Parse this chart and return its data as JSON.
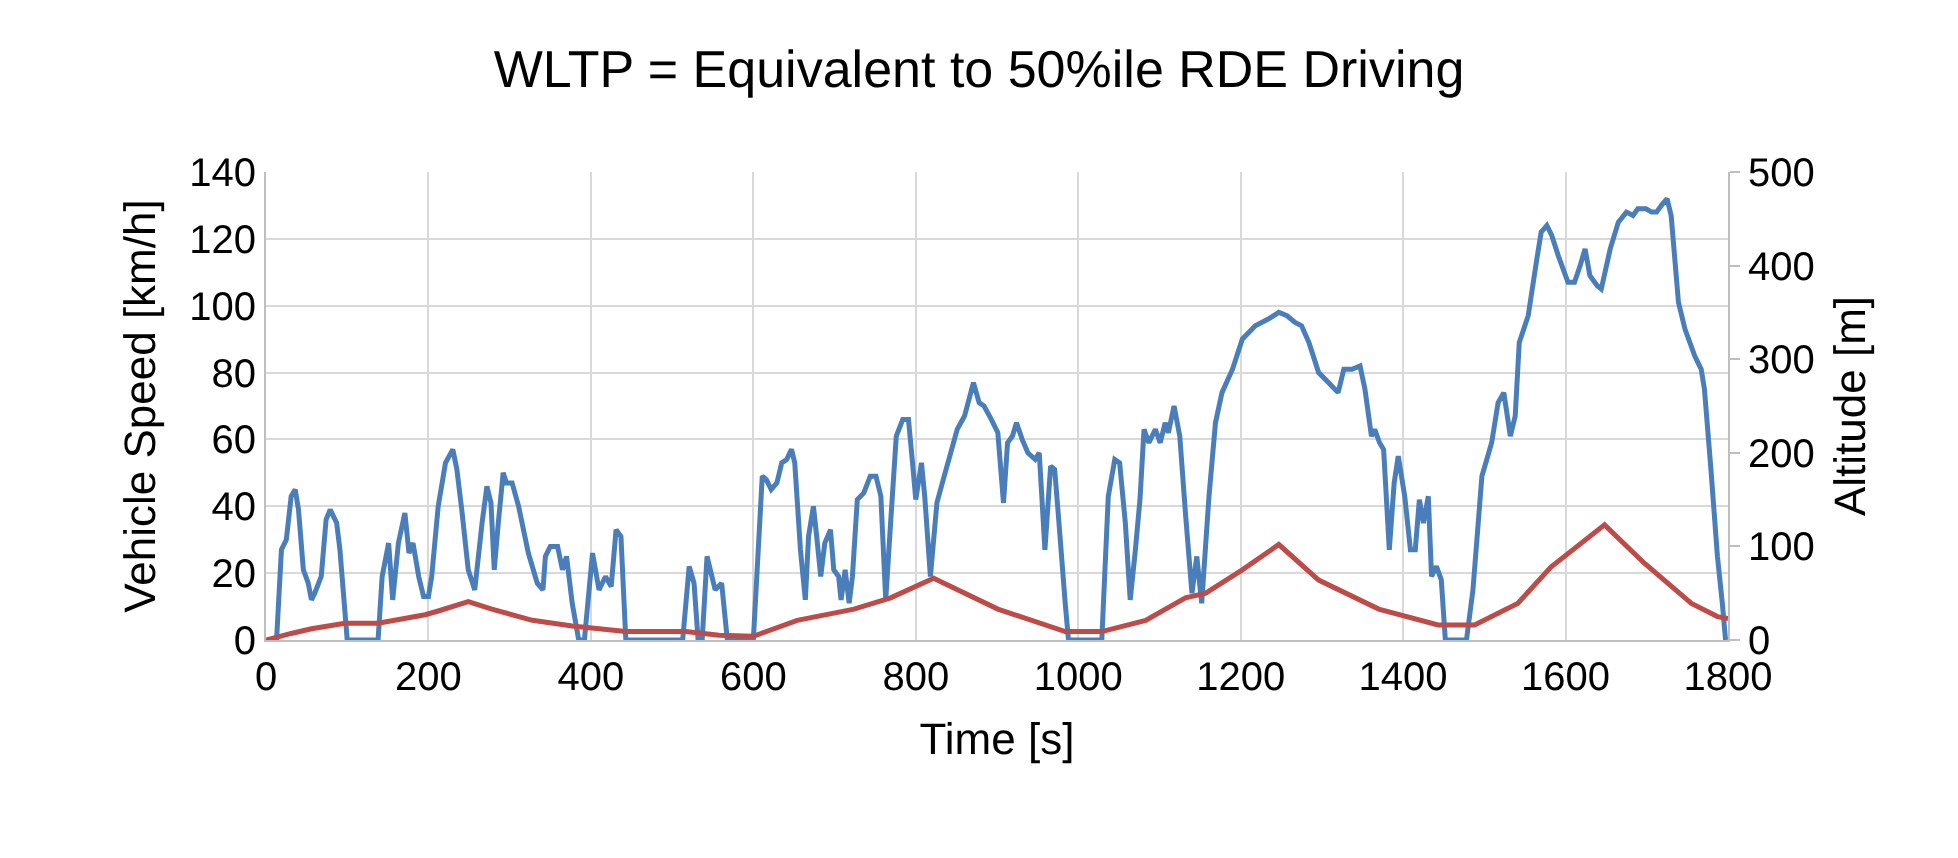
{
  "chart_data": {
    "type": "line",
    "title": "WLTP = Equivalent to 50%ile RDE Driving",
    "xlabel": "Time [s]",
    "ylabel": "Vehicle Speed [km/h]",
    "y2label": "Altitude [m]",
    "xlim": [
      0,
      1800
    ],
    "xticks": [
      0,
      200,
      400,
      600,
      800,
      1000,
      1200,
      1400,
      1600,
      1800
    ],
    "ylim": [
      0,
      140
    ],
    "yticks": [
      0,
      20,
      40,
      60,
      80,
      100,
      120,
      140
    ],
    "y2lim": [
      0,
      500
    ],
    "y2ticks": [
      0,
      100,
      200,
      300,
      400,
      500
    ],
    "grid": true,
    "marker": "none",
    "line_style": "solid",
    "series": [
      {
        "color": "#4a7ebb",
        "x": [
          13,
          19,
          25,
          31,
          36,
          40,
          46,
          52,
          56,
          60,
          68,
          74,
          79,
          87,
          91,
          100,
          138,
          143,
          151,
          156,
          163,
          171,
          176,
          181,
          188,
          194,
          200,
          204,
          212,
          221,
          230,
          235,
          241,
          249,
          257,
          266,
          272,
          277,
          281,
          286,
          292,
          296,
          303,
          311,
          323,
          334,
          341,
          344,
          350,
          359,
          365,
          370,
          377,
          385,
          392,
          402,
          410,
          418,
          425,
          431,
          437,
          443,
          513,
          521,
          527,
          532,
          537,
          543,
          553,
          561,
          568,
          600,
          611,
          616,
          622,
          629,
          635,
          641,
          647,
          651,
          658,
          664,
          668,
          674,
          678,
          683,
          688,
          695,
          699,
          705,
          708,
          713,
          718,
          722,
          728,
          736,
          744,
          751,
          757,
          763,
          769,
          776,
          784,
          791,
          796,
          800,
          807,
          811,
          818,
          826,
          835,
          843,
          851,
          860,
          871,
          878,
          884,
          893,
          901,
          908,
          913,
          919,
          924,
          931,
          938,
          947,
          952,
          959,
          966,
          971,
          975,
          984,
          988,
          1029,
          1037,
          1045,
          1051,
          1058,
          1064,
          1070,
          1076,
          1081,
          1087,
          1095,
          1101,
          1107,
          1111,
          1118,
          1125,
          1132,
          1140,
          1146,
          1152,
          1161,
          1169,
          1177,
          1190,
          1202,
          1218,
          1234,
          1247,
          1257,
          1267,
          1275,
          1284,
          1296,
          1308,
          1320,
          1327,
          1337,
          1347,
          1353,
          1361,
          1365,
          1371,
          1376,
          1383,
          1389,
          1394,
          1402,
          1409,
          1415,
          1420,
          1425,
          1431,
          1435,
          1441,
          1447,
          1452,
          1478,
          1486,
          1497,
          1509,
          1517,
          1524,
          1532,
          1538,
          1543,
          1554,
          1564,
          1570,
          1577,
          1583,
          1591,
          1603,
          1611,
          1618,
          1624,
          1630,
          1639,
          1644,
          1655,
          1665,
          1675,
          1683,
          1689,
          1699,
          1706,
          1712,
          1718,
          1725,
          1730,
          1739,
          1747,
          1759,
          1767,
          1771,
          1779,
          1787,
          1793,
          1797
        ],
        "values": [
          0,
          27,
          30,
          43,
          45,
          39,
          21,
          17,
          12,
          14,
          19,
          36,
          39,
          35,
          27,
          0,
          0,
          19,
          29,
          12,
          29,
          38,
          26,
          29,
          19,
          13,
          13,
          19,
          40,
          53,
          57,
          51,
          39,
          21,
          15,
          35,
          46,
          41,
          21,
          35,
          50,
          47,
          47,
          40,
          26,
          17,
          15,
          25,
          28,
          28,
          21,
          25,
          11,
          0,
          0,
          26,
          15,
          19,
          16,
          33,
          31,
          0,
          0,
          22,
          17,
          0,
          0,
          25,
          15,
          17,
          0,
          0,
          49,
          48,
          45,
          47,
          53,
          54,
          57,
          53,
          27,
          12,
          31,
          40,
          31,
          19,
          29,
          33,
          21,
          19,
          12,
          21,
          11,
          19,
          42,
          44,
          49,
          49,
          43,
          12,
          35,
          61,
          66,
          66,
          53,
          42,
          53,
          43,
          19,
          41,
          49,
          56,
          63,
          67,
          77,
          71,
          70,
          66,
          62,
          41,
          59,
          61,
          65,
          60,
          56,
          54,
          56,
          27,
          52,
          51,
          39,
          11,
          0,
          0,
          43,
          54,
          53,
          35,
          12,
          26,
          42,
          63,
          59,
          63,
          59,
          65,
          62,
          70,
          61,
          38,
          14,
          25,
          11,
          43,
          65,
          74,
          81,
          90,
          94,
          96,
          98,
          97,
          95,
          94,
          89,
          80,
          77,
          74,
          81,
          81,
          82,
          75,
          61,
          63,
          59,
          57,
          27,
          47,
          55,
          43,
          27,
          27,
          42,
          35,
          43,
          19,
          22,
          18,
          0,
          0,
          15,
          49,
          59,
          71,
          74,
          61,
          67,
          89,
          97,
          113,
          122,
          124,
          121,
          115,
          107,
          107,
          112,
          117,
          109,
          106,
          105,
          117,
          125,
          128,
          127,
          129,
          129,
          128,
          128,
          130,
          132,
          127,
          101,
          93,
          85,
          81,
          75,
          51,
          25,
          11,
          0
        ]
      },
      {
        "color": "#be4b48",
        "axis": "y2",
        "x": [
          0,
          31,
          56,
          97,
          138,
          196,
          212,
          249,
          278,
          328,
          377,
          443,
          517,
          558,
          600,
          654,
          724,
          769,
          822,
          901,
          984,
          1029,
          1083,
          1132,
          1157,
          1202,
          1247,
          1296,
          1370,
          1443,
          1488,
          1541,
          1582,
          1648,
          1697,
          1755,
          1787,
          1800
        ],
        "values": [
          0,
          7,
          12,
          18,
          18,
          27,
          31,
          41,
          33,
          21,
          15,
          9,
          9,
          5,
          4,
          21,
          33,
          45,
          66,
          33,
          9,
          9,
          21,
          45,
          50,
          75,
          102,
          64,
          33,
          16,
          16,
          39,
          78,
          123,
          82,
          39,
          25,
          23
        ]
      }
    ]
  }
}
